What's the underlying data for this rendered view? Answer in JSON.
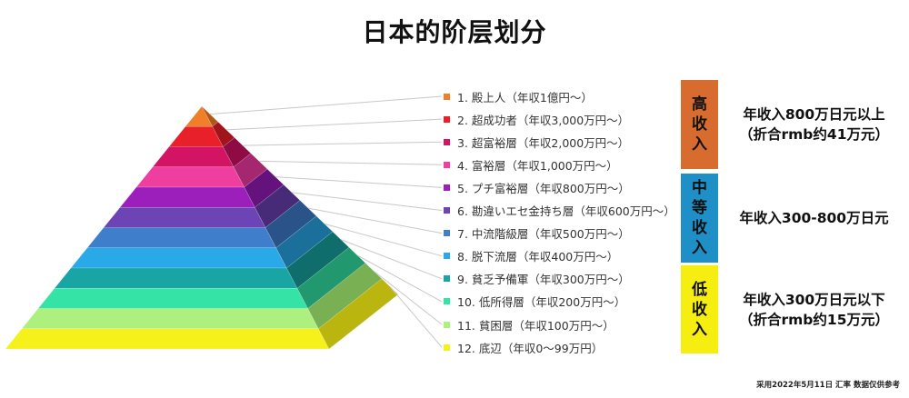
{
  "title": "日本的阶层划分",
  "levels": [
    {
      "label": "1.  殿上人（年収1億円〜）",
      "color": "#f07f2a",
      "side": "#b35618"
    },
    {
      "label": "2.  超成功者（年収3,000万円〜）",
      "color": "#e8202a",
      "side": "#a0141b"
    },
    {
      "label": "3.  超富裕層（年収2,000万円〜）",
      "color": "#d31465",
      "side": "#8e0c43"
    },
    {
      "label": "4.  富裕層（年収1,000万円〜）",
      "color": "#ee3ea0",
      "side": "#a52770"
    },
    {
      "label": "5.  プチ富裕層（年収800万円〜）",
      "color": "#9c1fbc",
      "side": "#65137c"
    },
    {
      "label": "6.  勘違いエセ金持ち層（年収600万円〜）",
      "color": "#6d44b6",
      "side": "#472b78"
    },
    {
      "label": "7.  中流階級層（年収500万円〜）",
      "color": "#3f7ecb",
      "side": "#2a5489"
    },
    {
      "label": "8.  脱下流層（年収400万円〜）",
      "color": "#29a9e8",
      "side": "#1b709b"
    },
    {
      "label": "9.  貧乏予備軍（年収300万円〜）",
      "color": "#18a5a3",
      "side": "#0f6d6b"
    },
    {
      "label": "10.  低所得層（年収200万円〜）",
      "color": "#36e3a6",
      "side": "#22986e"
    },
    {
      "label": "11.  貧困層（年収100万円〜）",
      "color": "#aef07d",
      "side": "#7ab054"
    },
    {
      "label": "12.  底辺（年収0〜99万円）",
      "color": "#f6f11a",
      "side": "#bbb60f"
    }
  ],
  "tiers": [
    {
      "label": "高收入",
      "color": "#d86c2f",
      "text": [
        "年收入800万日元以上",
        "（折合rmb约41万元）"
      ]
    },
    {
      "label": "中等收入",
      "color": "#1f8fc8",
      "text": [
        "年收入300-800万日元"
      ]
    },
    {
      "label": "低收入",
      "color": "#f6ee10",
      "text": [
        "年收入300万日元以下",
        "（折合rmb约15万元）"
      ]
    }
  ],
  "note": "采用2022年5月11日 汇率  数据仅供参考"
}
